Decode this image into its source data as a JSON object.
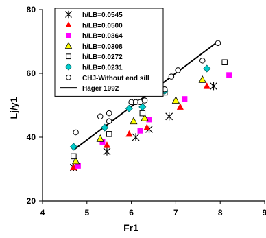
{
  "chart_data": {
    "type": "scatter",
    "title": "",
    "xlabel": "Fr1",
    "ylabel": "Lj/y1",
    "xlim": [
      4,
      9
    ],
    "ylim": [
      20,
      80
    ],
    "x_ticks": [
      "4",
      "5",
      "6",
      "7",
      "8",
      "9"
    ],
    "y_ticks": [
      "20",
      "40",
      "60",
      "80"
    ],
    "grid": false,
    "legend_position": "top-left",
    "series": [
      {
        "name": "h/LB=0.0545",
        "marker": "asterisk",
        "color": "#000000",
        "points": [
          [
            4.7,
            30.5
          ],
          [
            5.45,
            35.5
          ],
          [
            6.1,
            40.0
          ],
          [
            6.4,
            42.5
          ],
          [
            6.85,
            46.5
          ],
          [
            7.85,
            56.0
          ]
        ]
      },
      {
        "name": "h/LB=0.0500",
        "marker": "triangle",
        "color": "#ff0000",
        "points": [
          [
            4.7,
            30.5
          ],
          [
            5.45,
            37.5
          ],
          [
            5.95,
            41.0
          ],
          [
            6.35,
            43.0
          ],
          [
            7.1,
            49.5
          ],
          [
            7.7,
            56.0
          ]
        ]
      },
      {
        "name": "h/LB=0.0364",
        "marker": "square",
        "color": "#ff00ff",
        "points": [
          [
            4.8,
            31.0
          ],
          [
            5.35,
            38.5
          ],
          [
            6.2,
            42.0
          ],
          [
            6.4,
            45.5
          ],
          [
            7.2,
            52.0
          ],
          [
            8.2,
            59.5
          ]
        ]
      },
      {
        "name": "h/LB=0.0308",
        "marker": "triangle",
        "color": "#ffff00",
        "points": [
          [
            4.75,
            32.5
          ],
          [
            5.3,
            39.5
          ],
          [
            6.05,
            45.0
          ],
          [
            6.3,
            46.0
          ],
          [
            7.0,
            51.5
          ],
          [
            7.6,
            58.0
          ]
        ]
      },
      {
        "name": "h/LB=0.0272",
        "marker": "square-open",
        "color": "#000000",
        "points": [
          [
            4.7,
            34.0
          ],
          [
            5.5,
            41.0
          ],
          [
            6.25,
            47.5
          ],
          [
            6.75,
            54.0
          ],
          [
            8.1,
            63.5
          ]
        ]
      },
      {
        "name": "h/LB=0.0231",
        "marker": "diamond",
        "color": "#00cccc",
        "points": [
          [
            4.7,
            37.0
          ],
          [
            5.4,
            43.0
          ],
          [
            5.95,
            49.0
          ],
          [
            6.25,
            49.5
          ],
          [
            6.75,
            54.5
          ],
          [
            7.7,
            61.5
          ]
        ]
      },
      {
        "name": "CHJ-Without end sill",
        "marker": "circle-open",
        "color": "#000000",
        "points": [
          [
            4.75,
            41.5
          ],
          [
            5.3,
            46.5
          ],
          [
            5.5,
            47.5
          ],
          [
            5.5,
            45.0
          ],
          [
            6.0,
            51.0
          ],
          [
            6.1,
            51.0
          ],
          [
            6.2,
            51.0
          ],
          [
            6.3,
            51.5
          ],
          [
            6.75,
            55.0
          ],
          [
            6.9,
            59.0
          ],
          [
            7.05,
            61.0
          ],
          [
            7.6,
            64.0
          ],
          [
            7.95,
            69.5
          ]
        ]
      }
    ],
    "lines": [
      {
        "name": "Hager 1992",
        "color": "#000000",
        "points": [
          [
            4.7,
            36.0
          ],
          [
            7.95,
            70.0
          ]
        ]
      }
    ]
  }
}
